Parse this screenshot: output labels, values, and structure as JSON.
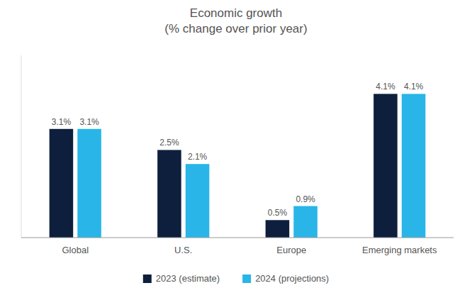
{
  "chart_data": {
    "type": "bar",
    "title": "Economic growth\n(% change over prior year)",
    "categories": [
      "Global",
      "U.S.",
      "Europe",
      "Emerging markets"
    ],
    "series": [
      {
        "name": "2023 (estimate)",
        "color": "#0d1f3c",
        "values": [
          3.1,
          2.5,
          0.5,
          4.1
        ],
        "value_labels": [
          "3.1%",
          "2.5%",
          "0.5%",
          "4.1%"
        ]
      },
      {
        "name": "2024 (projections)",
        "color": "#29b5e8",
        "values": [
          3.1,
          2.1,
          0.9,
          4.1
        ],
        "value_labels": [
          "3.1%",
          "2.1%",
          "0.9%",
          "4.1%"
        ]
      }
    ],
    "ylim": [
      0,
      5.2
    ],
    "grid": false,
    "legend": "bottom",
    "data_labels": true,
    "tick_labels": "x"
  }
}
